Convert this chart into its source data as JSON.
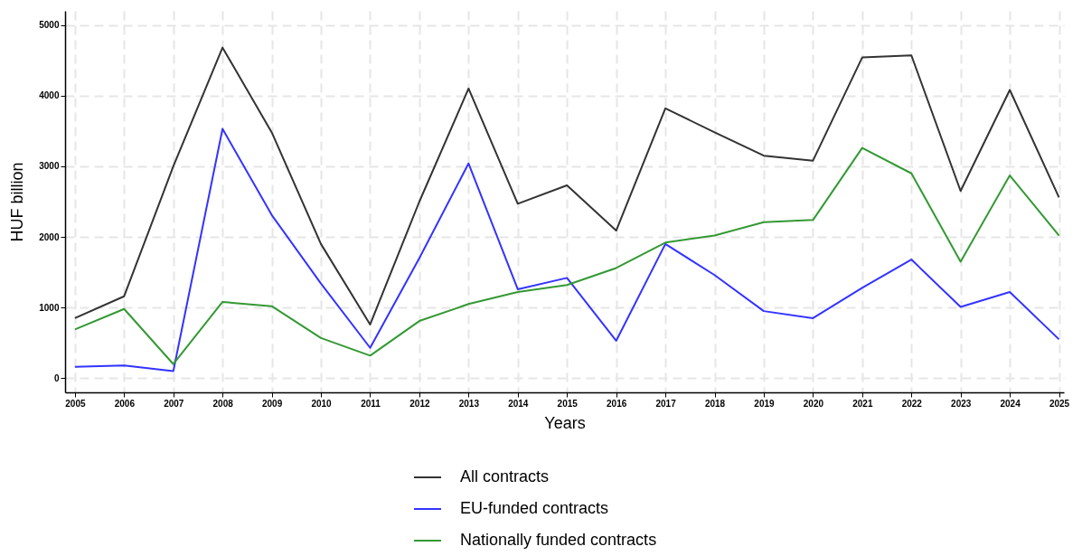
{
  "chart_data": {
    "type": "line",
    "xlabel": "Years",
    "ylabel": "HUF billion",
    "x": [
      2005,
      2006,
      2007,
      2008,
      2009,
      2010,
      2011,
      2012,
      2013,
      2014,
      2015,
      2016,
      2017,
      2018,
      2019,
      2020,
      2021,
      2022,
      2023,
      2024,
      2025
    ],
    "xlim": [
      2004.8,
      2025.1
    ],
    "xticks": [
      2005,
      2006,
      2007,
      2008,
      2009,
      2010,
      2011,
      2012,
      2013,
      2014,
      2015,
      2016,
      2017,
      2018,
      2019,
      2020,
      2021,
      2022,
      2023,
      2024,
      2025
    ],
    "ylim": [
      -200,
      5200
    ],
    "yticks": [
      0,
      1000,
      2000,
      3000,
      4000,
      5000
    ],
    "grid": true,
    "legend": "bottom",
    "marker": "none",
    "line_style": "solid",
    "series": [
      {
        "name": "All contracts",
        "color": "#333333",
        "values": [
          850,
          1160,
          3000,
          4680,
          3480,
          1900,
          760,
          2500,
          4100,
          2470,
          2730,
          2090,
          3820,
          3480,
          3150,
          3080,
          4540,
          4570,
          2650,
          4080,
          2560
        ]
      },
      {
        "name": "EU-funded contracts",
        "color": "#3333ff",
        "values": [
          160,
          180,
          100,
          3530,
          2310,
          1340,
          430,
          1700,
          3040,
          1260,
          1420,
          530,
          1900,
          1460,
          950,
          850,
          1280,
          1680,
          1010,
          1220,
          550
        ]
      },
      {
        "name": "Nationally funded contracts",
        "color": "#339933",
        "values": [
          690,
          980,
          200,
          1080,
          1020,
          570,
          320,
          810,
          1050,
          1220,
          1320,
          1560,
          1920,
          2020,
          2210,
          2240,
          3260,
          2900,
          1650,
          2870,
          2020
        ]
      }
    ]
  }
}
